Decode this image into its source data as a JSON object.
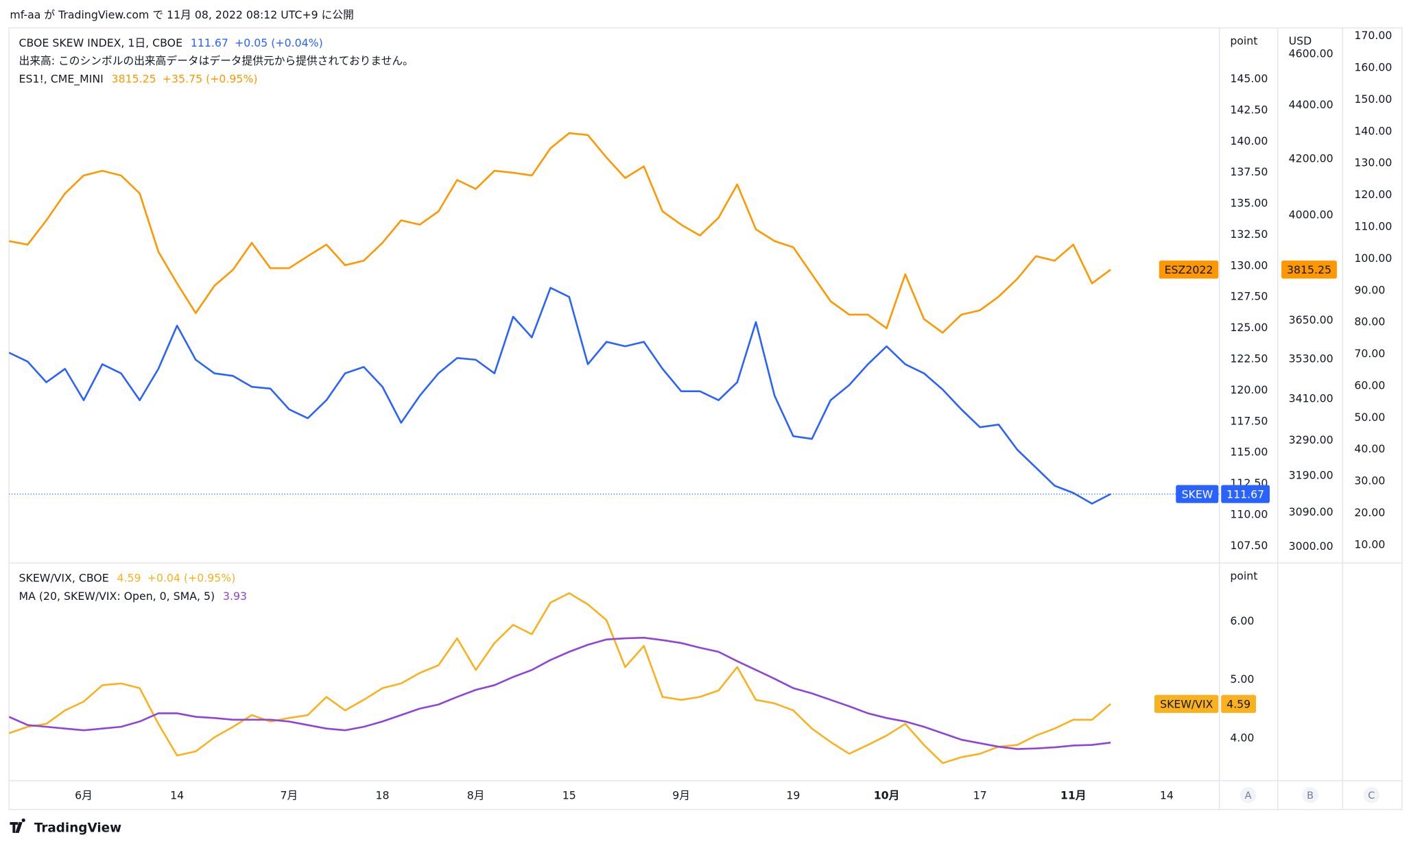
{
  "header": {
    "text": "mf-aa が TradingView.com で 11月 08, 2022 08:12 UTC+9 に公開"
  },
  "footer": {
    "logo": "TradingView"
  },
  "axis_buttons": [
    "A",
    "B",
    "C"
  ],
  "chart_data": [
    {
      "type": "line",
      "volume_note": "出来高: このシンボルの出来高データはデータ提供元から提供されておりません。",
      "y_label": "point",
      "y2_label": "USD",
      "ylim": [
        106.2,
        149.05
      ],
      "yticks": [
        {
          "value": 145,
          "label": "145.00"
        },
        {
          "value": 142.5,
          "label": "142.50"
        },
        {
          "value": 140,
          "label": "140.00"
        },
        {
          "value": 137.5,
          "label": "137.50"
        },
        {
          "value": 135,
          "label": "135.00"
        },
        {
          "value": 132.5,
          "label": "132.50"
        },
        {
          "value": 130,
          "label": "130.00"
        },
        {
          "value": 127.5,
          "label": "127.50"
        },
        {
          "value": 125,
          "label": "125.00"
        },
        {
          "value": 122.5,
          "label": "122.50"
        },
        {
          "value": 120,
          "label": "120.00"
        },
        {
          "value": 117.5,
          "label": "117.50"
        },
        {
          "value": 115,
          "label": "115.00"
        },
        {
          "value": 112.5,
          "label": "112.50"
        },
        {
          "value": 110,
          "label": "110.00"
        },
        {
          "value": 107.5,
          "label": "107.50"
        }
      ],
      "y2lim": [
        2960,
        4702
      ],
      "y2log": true,
      "y2ticks": [
        {
          "value": 4600,
          "label": "4600.00"
        },
        {
          "value": 4400,
          "label": "4400.00"
        },
        {
          "value": 4200,
          "label": "4200.00"
        },
        {
          "value": 4000,
          "label": "4000.00"
        },
        {
          "value": 3650,
          "label": "3650.00"
        },
        {
          "value": 3530,
          "label": "3530.00"
        },
        {
          "value": 3410,
          "label": "3410.00"
        },
        {
          "value": 3290,
          "label": "3290.00"
        },
        {
          "value": 3190,
          "label": "3190.00"
        },
        {
          "value": 3090,
          "label": "3090.00"
        },
        {
          "value": 3000,
          "label": "3000.00"
        }
      ],
      "y3lim": [
        4.6,
        172.3
      ],
      "y3ticks": [
        {
          "value": 170,
          "label": "170.00"
        },
        {
          "value": 160,
          "label": "160.00"
        },
        {
          "value": 150,
          "label": "150.00"
        },
        {
          "value": 140,
          "label": "140.00"
        },
        {
          "value": 130,
          "label": "130.00"
        },
        {
          "value": 120,
          "label": "120.00"
        },
        {
          "value": 110,
          "label": "110.00"
        },
        {
          "value": 100,
          "label": "100.00"
        },
        {
          "value": 90,
          "label": "90.00"
        },
        {
          "value": 80,
          "label": "80.00"
        },
        {
          "value": 70,
          "label": "70.00"
        },
        {
          "value": 60,
          "label": "60.00"
        },
        {
          "value": 50,
          "label": "50.00"
        },
        {
          "value": 40,
          "label": "40.00"
        },
        {
          "value": 30,
          "label": "30.00"
        },
        {
          "value": 20,
          "label": "20.00"
        },
        {
          "value": 10,
          "label": "10.00"
        }
      ],
      "grid": false,
      "series": [
        {
          "name": "CBOE SKEW INDEX, 1日, CBOE",
          "tag": "SKEW",
          "change": "+0.05 (+0.04%)",
          "color": "#2962ff",
          "axis": "y",
          "price_line": true,
          "values": [
            123.03,
            122.31,
            120.65,
            121.73,
            119.21,
            122.1,
            121.37,
            119.21,
            121.73,
            125.2,
            122.46,
            121.37,
            121.16,
            120.29,
            120.14,
            118.48,
            117.76,
            119.21,
            121.37,
            121.88,
            120.29,
            117.4,
            119.57,
            121.37,
            122.6,
            122.46,
            121.37,
            125.92,
            124.26,
            128.24,
            127.51,
            122.1,
            123.9,
            123.54,
            123.9,
            121.73,
            119.93,
            119.93,
            119.21,
            120.65,
            125.49,
            119.57,
            116.32,
            116.1,
            119.21,
            120.43,
            122.1,
            123.54,
            122.1,
            121.37,
            120.07,
            118.48,
            117.04,
            117.25,
            115.23,
            113.79,
            112.34,
            111.76,
            110.9,
            111.67,
            null,
            null,
            null
          ]
        },
        {
          "name": "ES1!, CME_MINI",
          "tag": "ESZ2022",
          "change": "+35.75 (+0.95%)",
          "color": "#ff9800",
          "axis": "y2",
          "values": [
            3911,
            3899,
            3982,
            4076,
            4140,
            4157,
            4140,
            4076,
            3875,
            3770,
            3674,
            3762,
            3815,
            3905,
            3820,
            3820,
            3860,
            3899,
            3830,
            3845,
            3905,
            3982,
            3967,
            4013,
            4124,
            4092,
            4157,
            4150,
            4140,
            4239,
            4295,
            4288,
            4205,
            4131,
            4173,
            4013,
            3967,
            3930,
            3991,
            4108,
            3951,
            3911,
            3890,
            3800,
            3712,
            3669,
            3669,
            3626,
            3800,
            3655,
            3612,
            3669,
            3683,
            3727,
            3785,
            3860,
            3845,
            3899,
            3770,
            3815.25,
            null,
            null,
            null
          ]
        }
      ]
    },
    {
      "type": "line",
      "y_label": "point",
      "ylim": [
        3.28,
        6.98
      ],
      "yticks": [
        {
          "value": 6,
          "label": "6.00"
        },
        {
          "value": 5,
          "label": "5.00"
        },
        {
          "value": 4,
          "label": "4.00"
        }
      ],
      "grid": false,
      "categories": [
        null,
        null,
        null,
        null,
        "6月",
        null,
        null,
        null,
        null,
        "14",
        null,
        null,
        null,
        null,
        null,
        "7月",
        null,
        null,
        null,
        null,
        "18",
        null,
        null,
        null,
        null,
        "8月",
        null,
        null,
        null,
        null,
        "15",
        null,
        null,
        null,
        null,
        null,
        "9月",
        null,
        null,
        null,
        null,
        null,
        "19",
        null,
        null,
        null,
        null,
        "10月",
        null,
        null,
        null,
        null,
        "17",
        null,
        null,
        null,
        null,
        "11月",
        null,
        null,
        null,
        null,
        "14"
      ],
      "series": [
        {
          "name": "SKEW/VIX, CBOE",
          "tag": "SKEW/VIX",
          "change": "+0.04 (+0.95%)",
          "color": "#f9b21d",
          "values": [
            4.09,
            4.2,
            4.25,
            4.48,
            4.63,
            4.91,
            4.94,
            4.86,
            4.25,
            3.71,
            3.78,
            4.02,
            4.2,
            4.4,
            4.29,
            4.35,
            4.4,
            4.71,
            4.48,
            4.66,
            4.86,
            4.94,
            5.12,
            5.25,
            5.71,
            5.17,
            5.63,
            5.94,
            5.78,
            6.32,
            6.48,
            6.29,
            6.02,
            5.22,
            5.58,
            4.71,
            4.66,
            4.71,
            4.82,
            5.22,
            4.66,
            4.6,
            4.48,
            4.17,
            3.94,
            3.74,
            3.89,
            4.05,
            4.25,
            3.89,
            3.58,
            3.68,
            3.74,
            3.86,
            3.89,
            4.05,
            4.17,
            4.32,
            4.32,
            4.59,
            null,
            null,
            null
          ]
        },
        {
          "name": "MA (20, SKEW/VIX: Open, 0, SMA, 5)",
          "color": "#8e44d8",
          "values": [
            4.37,
            4.23,
            4.2,
            4.17,
            4.14,
            4.17,
            4.2,
            4.29,
            4.43,
            4.43,
            4.37,
            4.35,
            4.32,
            4.32,
            4.32,
            4.29,
            4.23,
            4.17,
            4.14,
            4.2,
            4.29,
            4.4,
            4.51,
            4.58,
            4.71,
            4.83,
            4.91,
            5.05,
            5.17,
            5.34,
            5.48,
            5.6,
            5.69,
            5.71,
            5.72,
            5.68,
            5.63,
            5.55,
            5.48,
            5.32,
            5.17,
            5.02,
            4.86,
            4.77,
            4.66,
            4.55,
            4.43,
            4.35,
            4.29,
            4.2,
            4.09,
            3.98,
            3.92,
            3.86,
            3.82,
            3.83,
            3.85,
            3.88,
            3.89,
            3.93,
            null,
            null,
            null
          ]
        }
      ]
    }
  ]
}
